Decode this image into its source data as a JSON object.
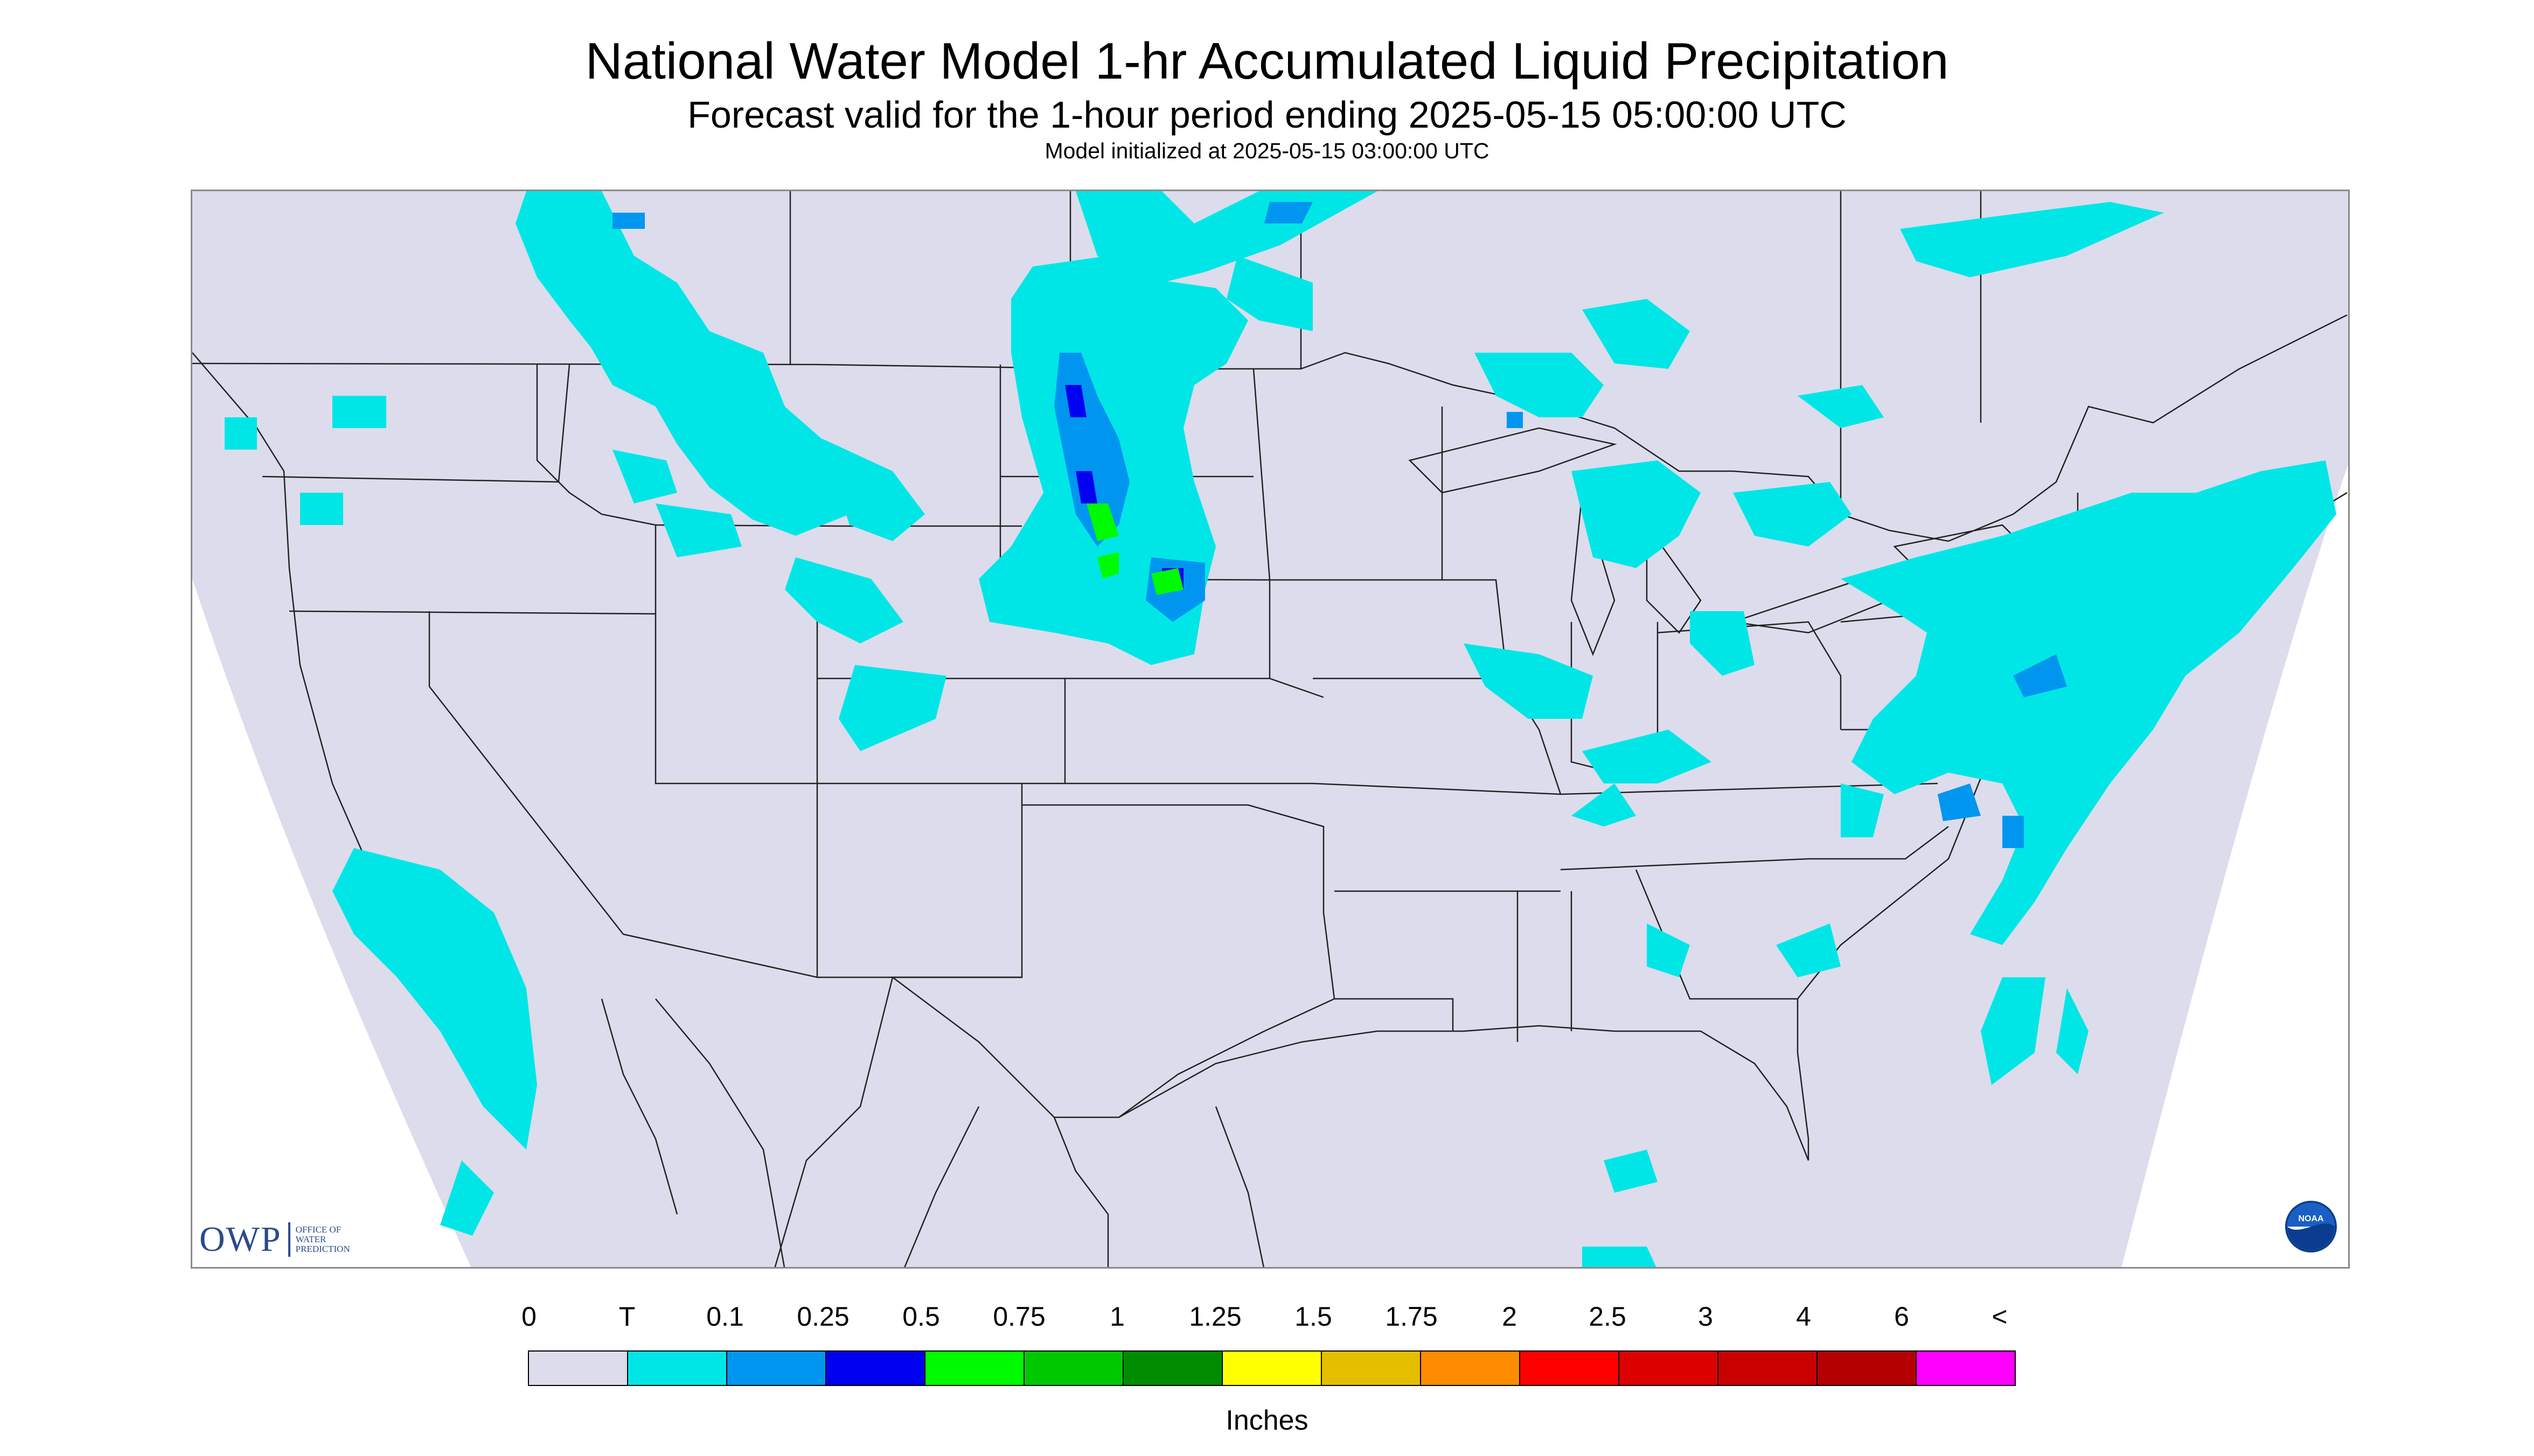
{
  "header": {
    "title": "National Water Model 1-hr Accumulated Liquid Precipitation",
    "subtitle": "Forecast valid for the 1-hour period ending 2025-05-15 05:00:00 UTC",
    "init": "Model initialized at 2025-05-15 03:00:00 UTC"
  },
  "map": {
    "projection_background": "#dcdcec",
    "outside_color": "#ffffff",
    "boundary_color": "#222222"
  },
  "legend": {
    "labels": [
      "0",
      "T",
      "0.1",
      "0.25",
      "0.5",
      "0.75",
      "1",
      "1.25",
      "1.5",
      "1.75",
      "2",
      "2.5",
      "3",
      "4",
      "6",
      "<"
    ],
    "colors": [
      "#dcdcec",
      "#00e6e6",
      "#0096f0",
      "#0000f0",
      "#00fa00",
      "#00c800",
      "#008c00",
      "#ffff00",
      "#e6be00",
      "#ff8c00",
      "#ff0000",
      "#dc0000",
      "#c80000",
      "#b40000",
      "#ff00ff",
      "#9b59c8"
    ],
    "unit": "Inches"
  },
  "logos": {
    "owp_mark": "OWP",
    "owp_text": [
      "OFFICE OF",
      "WATER",
      "PREDICTION"
    ],
    "noaa_text": "NOAA"
  }
}
